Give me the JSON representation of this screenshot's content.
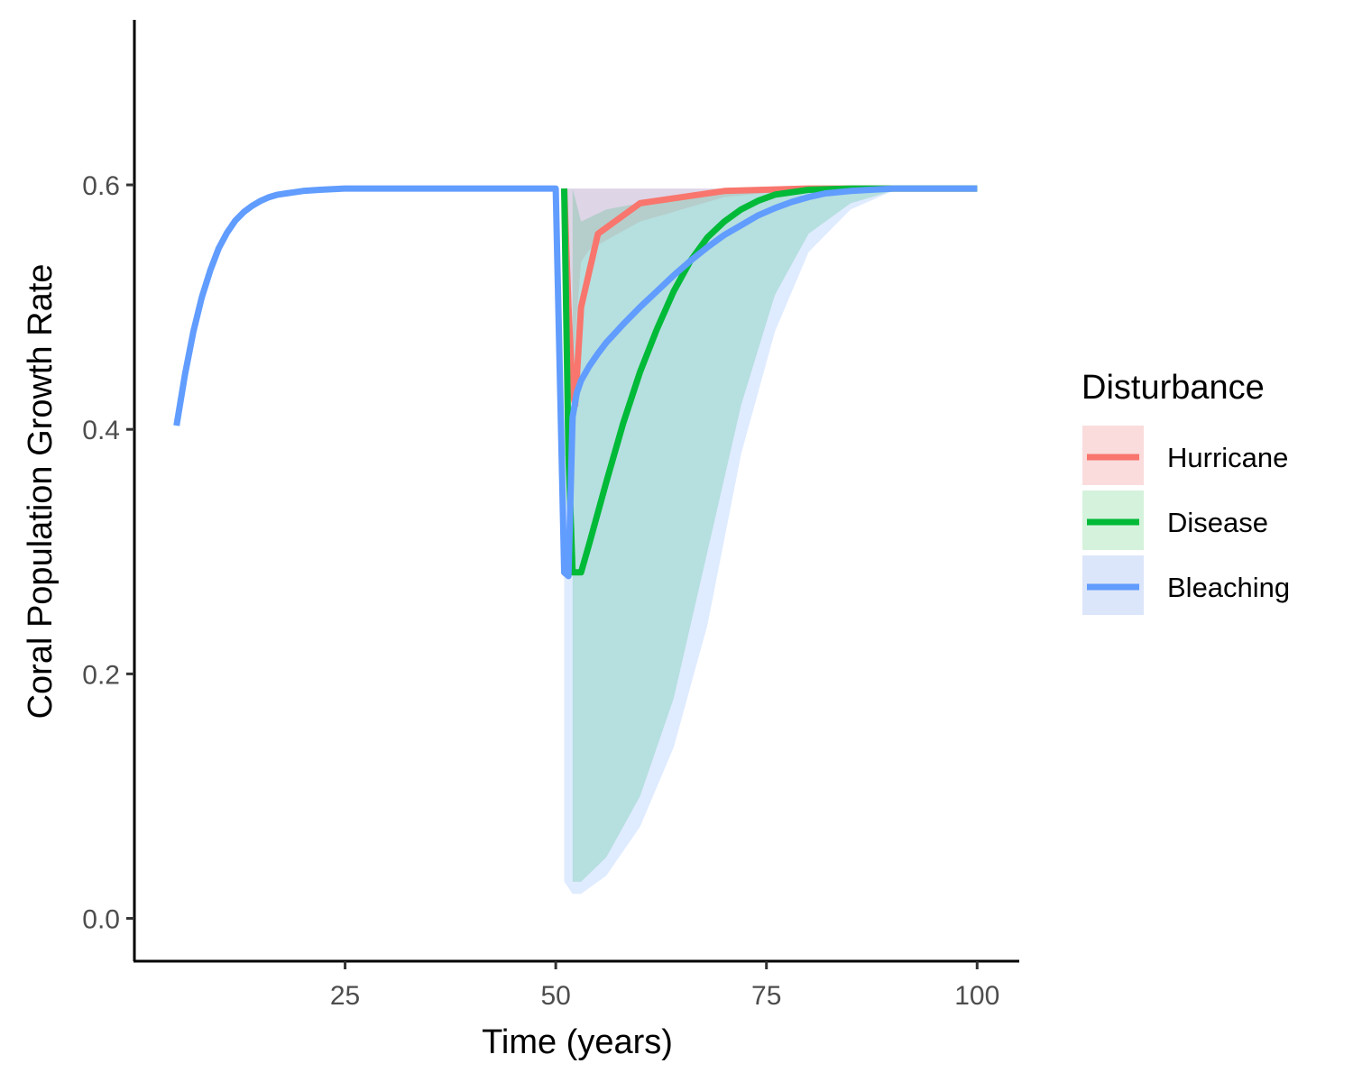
{
  "chart_data": {
    "type": "line",
    "xlabel": "Time (years)",
    "ylabel": "Coral Population Growth Rate",
    "xlim": [
      0,
      105
    ],
    "ylim": [
      -0.035,
      0.735
    ],
    "x_ticks": [
      25,
      50,
      75,
      100
    ],
    "x_tick_labels": [
      "25",
      "50",
      "75",
      "100"
    ],
    "y_ticks": [
      0.0,
      0.2,
      0.4,
      0.6
    ],
    "y_tick_labels": [
      "0.0",
      "0.2",
      "0.4",
      "0.6"
    ],
    "grid": false,
    "legend": {
      "title": "Disturbance",
      "placement": "right"
    },
    "series": [
      {
        "name": "Hurricane",
        "color": "#F8766D",
        "fill": "#FADCDC",
        "x": [
          51,
          51.5,
          52,
          52.3,
          53,
          55,
          60,
          70,
          80,
          100
        ],
        "y": [
          0.597,
          0.5,
          0.43,
          0.42,
          0.5,
          0.56,
          0.585,
          0.595,
          0.597,
          0.597
        ],
        "ribbon": {
          "x": [
            51,
            52,
            53,
            54,
            60,
            70,
            80,
            100
          ],
          "lower": [
            0.597,
            0.45,
            0.537,
            0.547,
            0.57,
            0.59,
            0.597,
            0.597
          ],
          "upper": [
            0.597,
            0.597,
            0.597,
            0.597,
            0.597,
            0.597,
            0.597,
            0.597
          ]
        }
      },
      {
        "name": "Disease",
        "color": "#00BA38",
        "fill": "#D5F2DC",
        "x": [
          51,
          51.5,
          52,
          53,
          54,
          56,
          58,
          60,
          62,
          64,
          66,
          68,
          70,
          72,
          74,
          76,
          80,
          85,
          90,
          100
        ],
        "y": [
          0.597,
          0.38,
          0.283,
          0.283,
          0.307,
          0.357,
          0.405,
          0.447,
          0.482,
          0.513,
          0.538,
          0.557,
          0.57,
          0.58,
          0.587,
          0.592,
          0.596,
          0.597,
          0.597,
          0.597
        ],
        "ribbon": {
          "x": [
            52,
            53,
            56,
            60,
            64,
            68,
            72,
            76,
            80,
            85,
            90,
            100
          ],
          "lower": [
            0.03,
            0.03,
            0.05,
            0.1,
            0.18,
            0.3,
            0.42,
            0.51,
            0.56,
            0.585,
            0.595,
            0.597
          ],
          "upper": [
            0.597,
            0.57,
            0.58,
            0.585,
            0.59,
            0.593,
            0.595,
            0.597,
            0.597,
            0.597,
            0.597,
            0.597
          ]
        }
      },
      {
        "name": "Bleaching",
        "color": "#619CFF",
        "fill": "#DCE6FA",
        "x": [
          5,
          6,
          7,
          8,
          9,
          10,
          11,
          12,
          13,
          14,
          15,
          16,
          17,
          18,
          19,
          20,
          22,
          25,
          30,
          40,
          50,
          51,
          51.5,
          52,
          52.5,
          53,
          54,
          55,
          56,
          58,
          60,
          62,
          64,
          66,
          68,
          70,
          72,
          74,
          76,
          78,
          80,
          82,
          85,
          90,
          100
        ],
        "y": [
          0.403,
          0.445,
          0.48,
          0.508,
          0.53,
          0.548,
          0.561,
          0.571,
          0.578,
          0.583,
          0.587,
          0.59,
          0.592,
          0.593,
          0.594,
          0.595,
          0.596,
          0.597,
          0.597,
          0.597,
          0.597,
          0.283,
          0.28,
          0.41,
          0.43,
          0.44,
          0.452,
          0.462,
          0.471,
          0.486,
          0.5,
          0.513,
          0.526,
          0.538,
          0.549,
          0.559,
          0.567,
          0.575,
          0.581,
          0.586,
          0.59,
          0.593,
          0.595,
          0.597,
          0.597
        ],
        "ribbon": {
          "x": [
            51,
            51.5,
            52,
            53,
            56,
            60,
            64,
            68,
            72,
            76,
            80,
            85,
            90,
            100
          ],
          "lower": [
            0.03,
            0.025,
            0.02,
            0.02,
            0.035,
            0.075,
            0.14,
            0.24,
            0.38,
            0.48,
            0.545,
            0.58,
            0.595,
            0.597
          ],
          "upper": [
            0.597,
            0.597,
            0.597,
            0.597,
            0.597,
            0.597,
            0.597,
            0.597,
            0.597,
            0.597,
            0.597,
            0.597,
            0.597,
            0.597
          ]
        }
      }
    ]
  }
}
